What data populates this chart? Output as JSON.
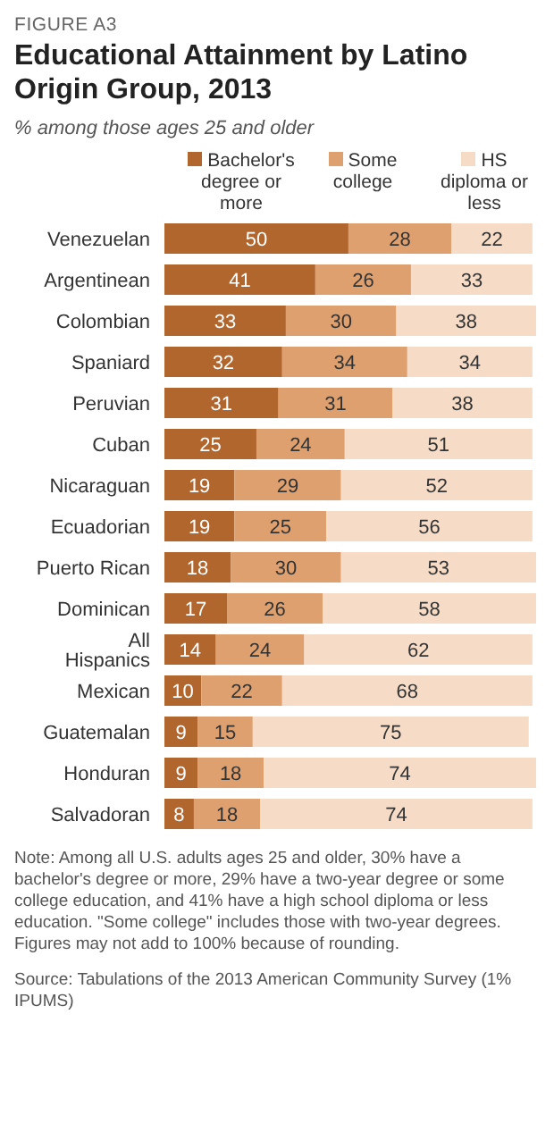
{
  "chart_data": {
    "type": "bar",
    "orientation": "horizontal",
    "stacked": true,
    "data_labels": true,
    "tick_labels": "y",
    "grid": false,
    "legend": "top right",
    "title": "Educational Attainment by Latino Origin Group, 2013",
    "subtitle": "% among those ages 25 and older",
    "categories": [
      "Venezuelan",
      "Argentinean",
      "Colombian",
      "Spaniard",
      "Peruvian",
      "Cuban",
      "Nicaraguan",
      "Ecuadorian",
      "Puerto Rican",
      "Dominican",
      "All Hispanics",
      "Mexican",
      "Guatemalan",
      "Honduran",
      "Salvadoran"
    ],
    "series": [
      {
        "name": "Bachelor's degree or more",
        "color": "#b1662e",
        "values": [
          50,
          41,
          33,
          32,
          31,
          25,
          19,
          19,
          18,
          17,
          14,
          10,
          9,
          9,
          8
        ]
      },
      {
        "name": "Some college",
        "color": "#dea06e",
        "values": [
          28,
          26,
          30,
          34,
          31,
          24,
          29,
          25,
          30,
          26,
          24,
          22,
          15,
          18,
          18
        ]
      },
      {
        "name": "HS diploma or less",
        "color": "#f6dcc6",
        "values": [
          22,
          33,
          38,
          34,
          38,
          51,
          52,
          56,
          53,
          58,
          62,
          68,
          75,
          74,
          74
        ]
      }
    ],
    "annotations": [
      "FIGURE A3",
      "Note: Among all U.S. adults ages 25 and older, 30% have a bachelor's degree or more, 29% have a two-year degree or some college education, and 41% have a high school diploma or less education. \"Some college\" includes those with two-year degrees. Figures may not add to 100% because of rounding.",
      "Source: Tabulations of the 2013 American Community Survey (1% IPUMS)"
    ]
  }
}
